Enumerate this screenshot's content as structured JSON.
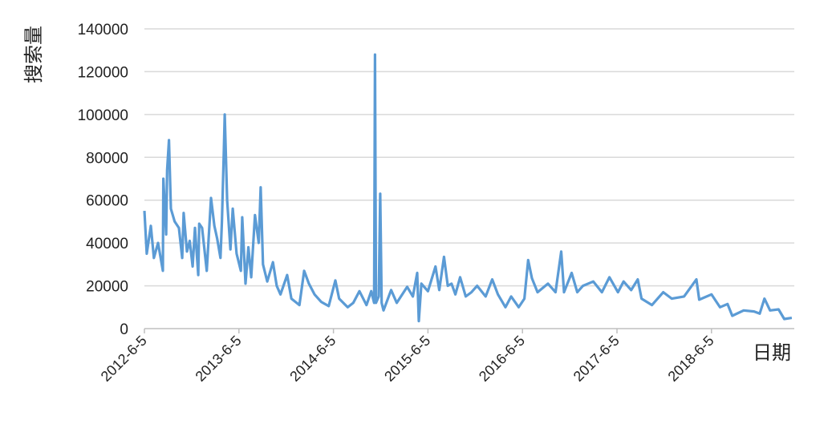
{
  "chart_data": {
    "type": "line",
    "title": "",
    "xlabel": "日期",
    "ylabel": "搜索量",
    "ylim": [
      0,
      140000
    ],
    "yticks": [
      0,
      20000,
      40000,
      60000,
      80000,
      100000,
      120000,
      140000
    ],
    "ytick_labels": [
      "0",
      "20000",
      "40000",
      "60000",
      "80000",
      "100000",
      "120000",
      "140000"
    ],
    "xticks": [
      0,
      1,
      2,
      3,
      4,
      5,
      6
    ],
    "xtick_labels": [
      "2012-6-5",
      "2013-6-5",
      "2014-6-5",
      "2015-6-5",
      "2016-6-5",
      "2017-6-5",
      "2018-6-5"
    ],
    "xlim": [
      0,
      6.88
    ],
    "grid": true,
    "series": [
      {
        "name": "搜索量",
        "color": "#5b9bd5",
        "x": [
          0,
          0.025,
          0.068,
          0.1,
          0.144,
          0.195,
          0.2,
          0.23,
          0.24,
          0.26,
          0.28,
          0.32,
          0.365,
          0.4,
          0.415,
          0.45,
          0.48,
          0.51,
          0.535,
          0.57,
          0.58,
          0.61,
          0.66,
          0.705,
          0.74,
          0.77,
          0.805,
          0.82,
          0.84,
          0.85,
          0.875,
          0.91,
          0.935,
          0.975,
          1.02,
          1.035,
          1.07,
          1.1,
          1.13,
          1.17,
          1.21,
          1.23,
          1.255,
          1.3,
          1.36,
          1.4,
          1.44,
          1.51,
          1.555,
          1.64,
          1.69,
          1.74,
          1.8,
          1.87,
          1.95,
          2.02,
          2.06,
          2.15,
          2.21,
          2.275,
          2.35,
          2.4,
          2.43,
          2.44,
          2.45,
          2.48,
          2.495,
          2.51,
          2.53,
          2.61,
          2.67,
          2.78,
          2.84,
          2.886,
          2.903,
          2.93,
          3.0,
          3.08,
          3.12,
          3.17,
          3.21,
          3.25,
          3.29,
          3.34,
          3.4,
          3.46,
          3.52,
          3.61,
          3.68,
          3.74,
          3.82,
          3.88,
          3.96,
          4.02,
          4.06,
          4.1,
          4.16,
          4.27,
          4.35,
          4.41,
          4.44,
          4.52,
          4.58,
          4.64,
          4.75,
          4.84,
          4.92,
          5.01,
          5.07,
          5.15,
          5.22,
          5.26,
          5.37,
          5.49,
          5.58,
          5.71,
          5.84,
          5.87,
          6.0,
          6.09,
          6.17,
          6.22,
          6.34,
          6.45,
          6.51,
          6.56,
          6.62,
          6.71,
          6.77,
          6.85
        ],
        "values": [
          55000,
          35000,
          48000,
          33000,
          40000,
          27000,
          70000,
          44000,
          74000,
          88000,
          56000,
          50000,
          47000,
          33000,
          54000,
          36000,
          41000,
          29000,
          47000,
          25000,
          49000,
          47000,
          27000,
          61000,
          48000,
          42000,
          33000,
          50000,
          83000,
          100000,
          60000,
          37000,
          56000,
          35000,
          27000,
          52000,
          21000,
          38000,
          24000,
          53000,
          40000,
          66000,
          30000,
          22000,
          31000,
          20000,
          16000,
          25000,
          14000,
          11000,
          27000,
          21000,
          16000,
          12500,
          10500,
          22500,
          14000,
          10000,
          12000,
          17500,
          11000,
          17500,
          12000,
          128000,
          12000,
          15000,
          63000,
          12000,
          8500,
          18000,
          12000,
          19500,
          15000,
          26000,
          3500,
          21000,
          17500,
          29000,
          18000,
          33500,
          20000,
          21000,
          16000,
          24000,
          15000,
          17000,
          20000,
          15000,
          23000,
          16000,
          10000,
          15000,
          10000,
          14000,
          32000,
          23500,
          17000,
          21000,
          17000,
          36000,
          17000,
          26000,
          17000,
          20000,
          22000,
          17000,
          24000,
          17000,
          22000,
          18000,
          23000,
          14000,
          11000,
          17000,
          14000,
          15000,
          23000,
          13500,
          16000,
          10000,
          11500,
          6000,
          8500,
          8000,
          7000,
          14000,
          8500,
          9000,
          4500,
          5000
        ]
      }
    ]
  }
}
